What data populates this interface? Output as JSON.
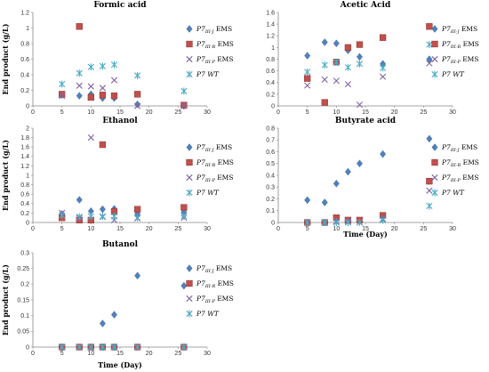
{
  "chart_data": [
    {
      "type": "scatter",
      "title": "Formic acid",
      "ylabel": "End product (g/L)",
      "xlabel": "",
      "xlim": [
        0,
        30
      ],
      "ylim": [
        0,
        1.2
      ],
      "xticks": [
        "0",
        "5",
        "10",
        "15",
        "20",
        "25",
        "30"
      ],
      "yticks": [
        "0",
        "0.2",
        "0.4",
        "0.6",
        "0.8",
        "1",
        "1.2"
      ],
      "legend_position": "right",
      "series": [
        {
          "name": "P7III-J EMS",
          "legend": {
            "p": "P7",
            "sub": "III-J",
            "tail": " EMS"
          },
          "color": "#4f81bd",
          "marker": "diamond",
          "x": [
            5,
            8,
            10,
            12,
            14,
            18,
            26
          ],
          "y": [
            0.14,
            0.13,
            0.15,
            0.1,
            0.1,
            0.02,
            0.0
          ]
        },
        {
          "name": "P7III-R EMS",
          "legend": {
            "p": "P7",
            "sub": "III-R",
            "tail": " EMS"
          },
          "color": "#c0504d",
          "marker": "square",
          "x": [
            5,
            8,
            10,
            12,
            14,
            18,
            26
          ],
          "y": [
            0.15,
            1.02,
            0.11,
            0.14,
            0.13,
            0.15,
            0.01
          ]
        },
        {
          "name": "P7III-P EMS",
          "legend": {
            "p": "P7",
            "sub": "III-P",
            "tail": " EMS"
          },
          "color": "#8064a2",
          "marker": "x",
          "x": [
            5,
            8,
            10,
            12,
            14,
            18,
            26
          ],
          "y": [
            0.13,
            0.26,
            0.25,
            0.23,
            0.33,
            0.0,
            0.0
          ]
        },
        {
          "name": "P7 WT",
          "legend": {
            "p": "P7",
            "sub": "",
            "tail": " WT"
          },
          "color": "#4bacc6",
          "marker": "star",
          "x": [
            5,
            8,
            10,
            12,
            14,
            18,
            26
          ],
          "y": [
            0.28,
            0.42,
            0.5,
            0.51,
            0.53,
            0.39,
            0.19
          ]
        }
      ]
    },
    {
      "type": "scatter",
      "title": "Acetic Acid",
      "ylabel": "",
      "xlabel": "",
      "xlim": [
        0,
        30
      ],
      "ylim": [
        0,
        1.6
      ],
      "xticks": [
        "0",
        "5",
        "10",
        "15",
        "20",
        "25",
        "30"
      ],
      "yticks": [
        "0",
        "0.2",
        "0.4",
        "0.6",
        "0.8",
        "1",
        "1.2",
        "1.4",
        "1.6"
      ],
      "legend_position": "right",
      "series": [
        {
          "name": "P7III-J EMS",
          "legend": {
            "p": "P7",
            "sub": "III-J",
            "tail": " EMS"
          },
          "color": "#4f81bd",
          "marker": "diamond",
          "x": [
            5,
            8,
            10,
            12,
            14,
            18,
            26
          ],
          "y": [
            0.86,
            1.09,
            1.07,
            0.95,
            0.84,
            0.72,
            0.8
          ]
        },
        {
          "name": "P7III-R EMS",
          "legend": {
            "p": "P7",
            "sub": "III-R",
            "tail": " EMS"
          },
          "color": "#c0504d",
          "marker": "square",
          "x": [
            5,
            8,
            10,
            12,
            14,
            18,
            26
          ],
          "y": [
            0.47,
            0.06,
            0.75,
            1.0,
            1.05,
            1.17,
            1.36
          ]
        },
        {
          "name": "P7III-P EMS",
          "legend": {
            "p": "P7",
            "sub": "III-P",
            "tail": " EMS"
          },
          "color": "#8064a2",
          "marker": "x",
          "x": [
            5,
            8,
            10,
            12,
            14,
            18,
            26
          ],
          "y": [
            0.35,
            0.45,
            0.43,
            0.37,
            0.02,
            0.5,
            0.73
          ]
        },
        {
          "name": "P7 WT",
          "legend": {
            "p": "P7",
            "sub": "",
            "tail": " WT"
          },
          "color": "#4bacc6",
          "marker": "star",
          "x": [
            5,
            8,
            10,
            12,
            14,
            18,
            26
          ],
          "y": [
            0.58,
            0.7,
            0.75,
            0.66,
            0.72,
            0.65,
            1.05
          ]
        }
      ]
    },
    {
      "type": "scatter",
      "title": "Ethanol",
      "ylabel": "End product (g/L)",
      "xlabel": "",
      "xlim": [
        0,
        30
      ],
      "ylim": [
        0,
        2
      ],
      "xticks": [
        "0",
        "5",
        "10",
        "15",
        "20",
        "25",
        "30"
      ],
      "yticks": [
        "0",
        "0.2",
        "0.4",
        "0.6",
        "0.8",
        "1",
        "1.2",
        "1.4",
        "1.6",
        "1.8",
        "2"
      ],
      "legend_position": "right",
      "series": [
        {
          "name": "P7III-J EMS",
          "legend": {
            "p": "P7",
            "sub": "III-J",
            "tail": " EMS"
          },
          "color": "#4f81bd",
          "marker": "diamond",
          "x": [
            5,
            8,
            10,
            12,
            14,
            18,
            26
          ],
          "y": [
            0.18,
            0.48,
            0.24,
            0.28,
            0.29,
            0.18,
            0.22
          ]
        },
        {
          "name": "P7III-R EMS",
          "legend": {
            "p": "P7",
            "sub": "III-R",
            "tail": " EMS"
          },
          "color": "#c0504d",
          "marker": "square",
          "x": [
            5,
            8,
            10,
            12,
            14,
            18,
            26
          ],
          "y": [
            0.1,
            0.05,
            0.05,
            1.65,
            0.23,
            0.28,
            0.32
          ]
        },
        {
          "name": "P7III-P EMS",
          "legend": {
            "p": "P7",
            "sub": "III-P",
            "tail": " EMS"
          },
          "color": "#8064a2",
          "marker": "x",
          "x": [
            5,
            8,
            10,
            12,
            14,
            18,
            26
          ],
          "y": [
            0.2,
            0.1,
            1.8,
            0.12,
            0.05,
            0.09,
            0.1
          ]
        },
        {
          "name": "P7 WT",
          "legend": {
            "p": "P7",
            "sub": "",
            "tail": " WT"
          },
          "color": "#4bacc6",
          "marker": "star",
          "x": [
            5,
            8,
            10,
            12,
            14,
            18,
            26
          ],
          "y": [
            0.15,
            0.12,
            0.13,
            0.13,
            0.13,
            0.1,
            0.14
          ]
        }
      ]
    },
    {
      "type": "scatter",
      "title": "Butyrate acid",
      "ylabel": "",
      "xlabel": "Time (Day)",
      "xlim": [
        0,
        30
      ],
      "ylim": [
        0,
        0.8
      ],
      "xticks": [
        "0",
        "5",
        "10",
        "15",
        "20",
        "25",
        "30"
      ],
      "yticks": [
        "0",
        "0.1",
        "0.2",
        "0.3",
        "0.4",
        "0.5",
        "0.6",
        "0.7",
        "0.8"
      ],
      "legend_position": "right",
      "series": [
        {
          "name": "P7III-J EMS",
          "legend": {
            "p": "P7",
            "sub": "III-J",
            "tail": " EMS"
          },
          "color": "#4f81bd",
          "marker": "diamond",
          "x": [
            5,
            8,
            10,
            12,
            14,
            18,
            26
          ],
          "y": [
            0.19,
            0.17,
            0.33,
            0.43,
            0.5,
            0.58,
            0.71
          ]
        },
        {
          "name": "P7III-R EMS",
          "legend": {
            "p": "P7",
            "sub": "III-R",
            "tail": " EMS"
          },
          "color": "#c0504d",
          "marker": "square",
          "x": [
            5,
            8,
            10,
            12,
            14,
            18,
            26
          ],
          "y": [
            0.0,
            0.0,
            0.04,
            0.02,
            0.02,
            0.06,
            0.35
          ]
        },
        {
          "name": "P7III-P EMS",
          "legend": {
            "p": "P7",
            "sub": "III-P",
            "tail": " EMS"
          },
          "color": "#8064a2",
          "marker": "x",
          "x": [
            5,
            8,
            10,
            12,
            14,
            18,
            26
          ],
          "y": [
            0.0,
            0.0,
            0.01,
            0.01,
            0.0,
            0.03,
            0.27
          ]
        },
        {
          "name": "P7 WT",
          "legend": {
            "p": "P7",
            "sub": "",
            "tail": " WT"
          },
          "color": "#4bacc6",
          "marker": "star",
          "x": [
            5,
            8,
            10,
            12,
            14,
            18,
            26
          ],
          "y": [
            0.0,
            0.0,
            0.0,
            0.0,
            0.0,
            0.02,
            0.14
          ]
        }
      ]
    },
    {
      "type": "scatter",
      "title": "Butanol",
      "ylabel": "End product (g/L)",
      "xlabel": "Time (Day)",
      "xlim": [
        0,
        30
      ],
      "ylim": [
        0,
        0.3
      ],
      "xticks": [
        "0",
        "5",
        "10",
        "15",
        "20",
        "25",
        "30"
      ],
      "yticks": [
        "0",
        "0.05",
        "0.1",
        "0.15",
        "0.2",
        "0.25",
        "0.3"
      ],
      "legend_position": "right",
      "series": [
        {
          "name": "P7III-J EMS",
          "legend": {
            "p": "P7",
            "sub": "III-J",
            "tail": " EMS"
          },
          "color": "#4f81bd",
          "marker": "diamond",
          "x": [
            5,
            8,
            10,
            12,
            14,
            18,
            26
          ],
          "y": [
            0.0,
            0.0,
            0.0,
            0.075,
            0.103,
            0.227,
            0.195
          ]
        },
        {
          "name": "P7III-R EMS",
          "legend": {
            "p": "P7",
            "sub": "III-R",
            "tail": " EMS"
          },
          "color": "#c0504d",
          "marker": "square",
          "x": [
            5,
            8,
            10,
            12,
            14,
            18,
            26
          ],
          "y": [
            0.0,
            0.0,
            0.0,
            0.0,
            0.0,
            0.0,
            0.0
          ]
        },
        {
          "name": "P7III-P EMS",
          "legend": {
            "p": "P7",
            "sub": "III-P",
            "tail": " EMS"
          },
          "color": "#8064a2",
          "marker": "x",
          "x": [
            5,
            8,
            10,
            12,
            14,
            18,
            26
          ],
          "y": [
            0.0,
            0.0,
            0.0,
            0.0,
            0.0,
            0.0,
            0.0
          ]
        },
        {
          "name": "P7 WT",
          "legend": {
            "p": "P7",
            "sub": "",
            "tail": " WT"
          },
          "color": "#4bacc6",
          "marker": "star",
          "x": [
            5,
            8,
            10,
            12,
            14,
            18,
            26
          ],
          "y": [
            0.0,
            0.0,
            0.0,
            0.0,
            0.0,
            0.0,
            0.0
          ]
        }
      ]
    }
  ]
}
